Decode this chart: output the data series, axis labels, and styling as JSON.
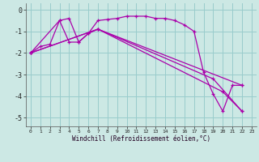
{
  "title": "",
  "xlabel": "Windchill (Refroidissement éolien,°C)",
  "ylabel": "",
  "bg_color": "#cce8e4",
  "line_color": "#aa00aa",
  "grid_color": "#99cccc",
  "xlim": [
    -0.5,
    23.5
  ],
  "ylim": [
    -5.4,
    0.3
  ],
  "yticks": [
    0,
    -1,
    -2,
    -3,
    -4,
    -5
  ],
  "xticks": [
    0,
    1,
    2,
    3,
    4,
    5,
    6,
    7,
    8,
    9,
    10,
    11,
    12,
    13,
    14,
    15,
    16,
    17,
    18,
    19,
    20,
    21,
    22,
    23
  ],
  "line1_x": [
    0,
    1,
    2,
    3,
    4,
    5,
    6,
    7,
    8,
    9,
    10,
    11,
    12,
    13,
    14,
    15,
    16,
    17,
    18,
    19,
    20,
    21,
    22
  ],
  "line1_y": [
    -2.0,
    -1.7,
    -1.6,
    -0.5,
    -0.4,
    -1.5,
    -1.1,
    -0.5,
    -0.45,
    -0.4,
    -0.3,
    -0.3,
    -0.3,
    -0.4,
    -0.4,
    -0.5,
    -0.7,
    -1.0,
    -2.9,
    -3.9,
    -4.7,
    -3.5,
    -3.5
  ],
  "line2_x": [
    0,
    3,
    4,
    5,
    6,
    7,
    22
  ],
  "line2_y": [
    -2.0,
    -0.5,
    -1.5,
    -1.5,
    -1.1,
    -0.9,
    -3.5
  ],
  "line3_x": [
    0,
    7,
    19,
    22
  ],
  "line3_y": [
    -2.0,
    -0.9,
    -3.2,
    -4.7
  ],
  "line4_x": [
    0,
    7,
    20,
    22
  ],
  "line4_y": [
    -2.0,
    -0.9,
    -3.8,
    -4.7
  ]
}
